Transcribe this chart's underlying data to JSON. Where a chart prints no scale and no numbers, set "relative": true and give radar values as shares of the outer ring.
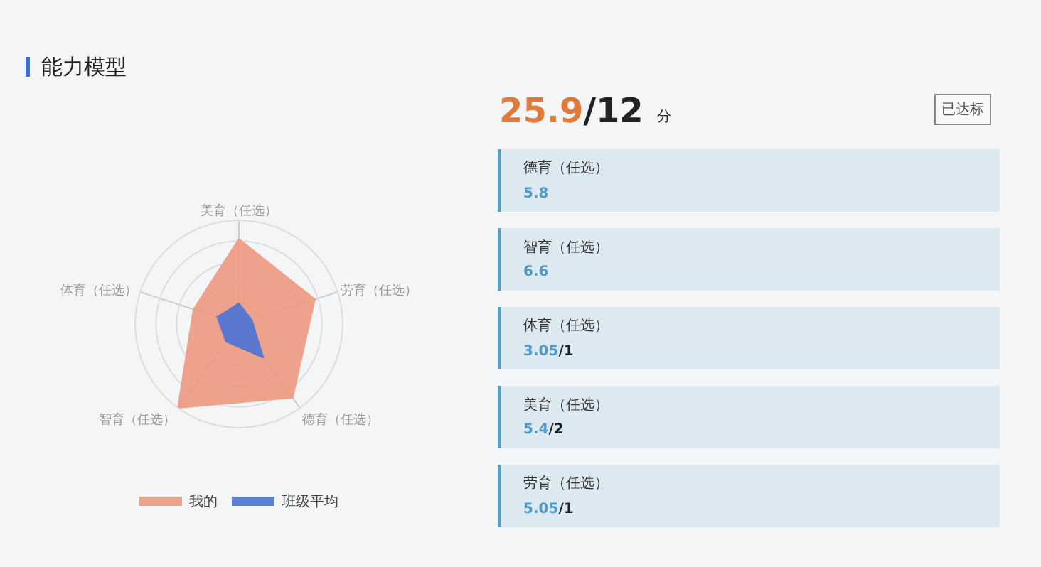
{
  "chart_data": [
    {
      "type": "radar",
      "title": "能力模型",
      "relative": true,
      "categories": [
        "美育（任选）",
        "劳育（任选）",
        "德育（任选）",
        "智育（任选）",
        "体育（任选）"
      ],
      "legend": "bottom",
      "series": [
        {
          "name": "我的",
          "color": "#ee9a80",
          "values": [
            0.82,
            0.77,
            0.88,
            1,
            0.46
          ]
        },
        {
          "name": "班级平均",
          "color": "#4a74d6",
          "values": [
            0.2,
            0.13,
            0.4,
            0.21,
            0.22
          ]
        }
      ]
    },
    {
      "type": "other",
      "annotations": [
        "25.9/12",
        "分",
        "已达标",
        "德育（任选）",
        "5.8",
        "智育（任选）",
        "6.6",
        "体育（任选）",
        "3.05/1",
        "美育（任选）",
        "5.4/2",
        "劳育（任选）",
        "5.05/1"
      ]
    }
  ]
}
